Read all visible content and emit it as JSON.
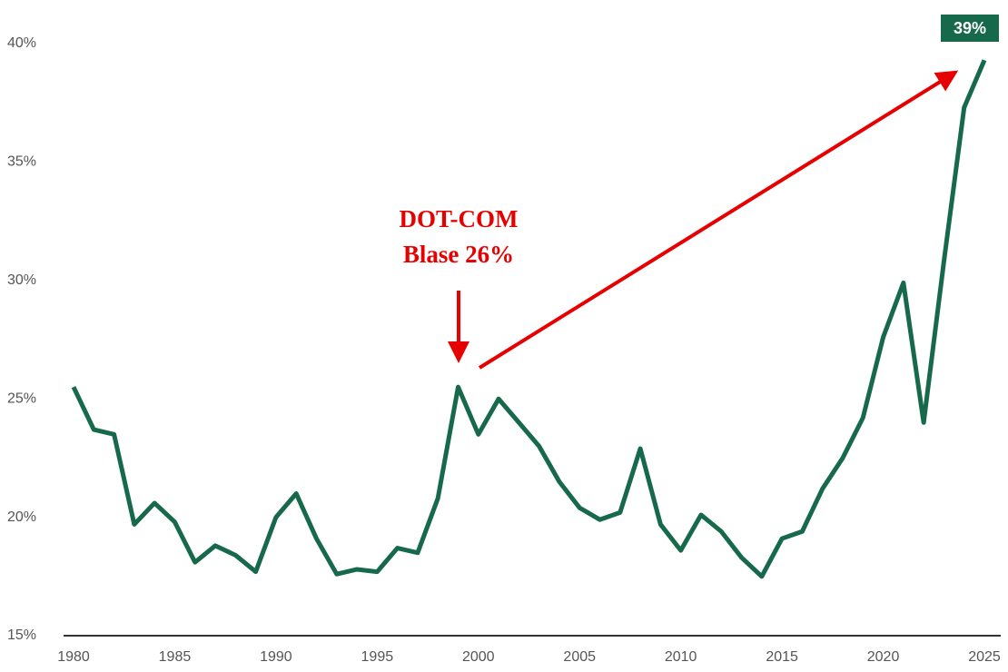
{
  "chart_data": {
    "type": "line",
    "x": [
      1980,
      1981,
      1982,
      1983,
      1984,
      1985,
      1986,
      1987,
      1988,
      1989,
      1990,
      1991,
      1992,
      1993,
      1994,
      1995,
      1996,
      1997,
      1998,
      1999,
      2000,
      2001,
      2002,
      2003,
      2004,
      2005,
      2006,
      2007,
      2008,
      2009,
      2010,
      2011,
      2012,
      2013,
      2014,
      2015,
      2016,
      2017,
      2018,
      2019,
      2020,
      2021,
      2022,
      2023,
      2024,
      2025
    ],
    "series": [
      {
        "color": "#17694c",
        "values": [
          25.5,
          23.7,
          23.5,
          19.7,
          20.6,
          19.8,
          18.1,
          18.8,
          18.4,
          17.7,
          20.0,
          21.0,
          19.1,
          17.6,
          17.8,
          17.7,
          18.7,
          18.5,
          20.8,
          25.5,
          23.5,
          25.0,
          24.0,
          23.0,
          21.5,
          20.4,
          19.9,
          20.2,
          22.9,
          19.7,
          18.6,
          20.1,
          19.4,
          18.3,
          17.5,
          19.1,
          19.4,
          21.2,
          22.5,
          24.2,
          27.6,
          29.9,
          24.0,
          30.8,
          37.3,
          39.3
        ]
      }
    ],
    "xlim": [
      1980,
      2025
    ],
    "xticks": [
      1980,
      1985,
      1990,
      1995,
      2000,
      2005,
      2010,
      2015,
      2020,
      2025
    ],
    "ylim": [
      15,
      40
    ],
    "yticks": [
      {
        "value": 15,
        "label": "15%"
      },
      {
        "value": 20,
        "label": "20%"
      },
      {
        "value": 25,
        "label": "25%"
      },
      {
        "value": 30,
        "label": "30%"
      },
      {
        "value": 35,
        "label": "35%"
      },
      {
        "value": 40,
        "label": "40%"
      }
    ],
    "grid": false,
    "annotation": [
      "DOT-COM",
      "Blase 26%"
    ],
    "end_label": "39%"
  }
}
